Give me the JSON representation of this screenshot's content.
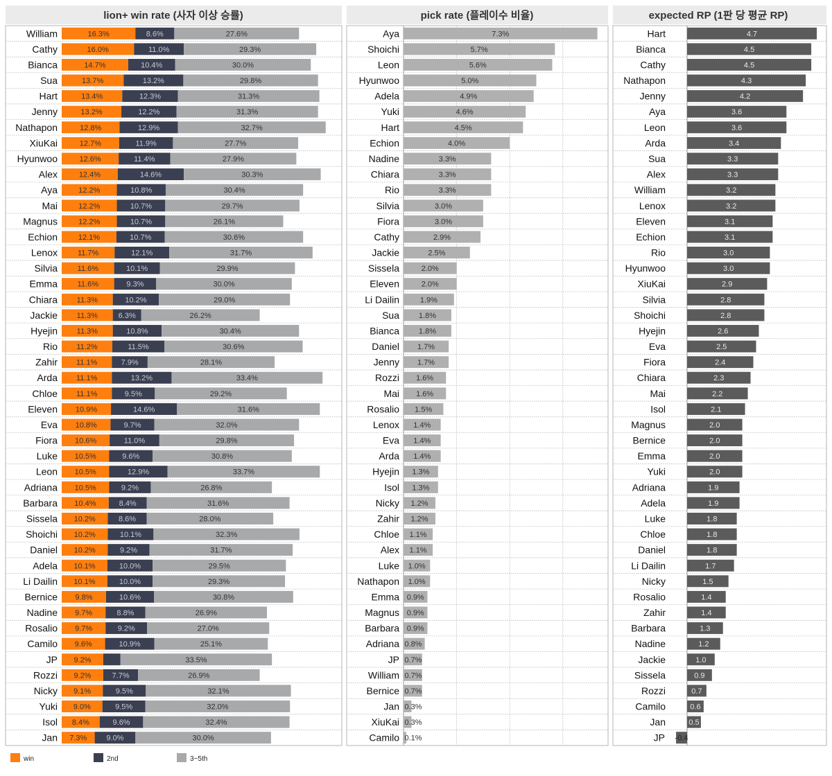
{
  "colors": {
    "win": "#ff7f0e",
    "second": "#3a3f51",
    "third_fifth": "#a7a9ab",
    "pick_bar": "#b0b0b0",
    "rp_bar": "#5b5b5b",
    "header_bg": "#ebebeb",
    "grid": "#b9b9b9"
  },
  "legend": {
    "win": "win",
    "second": "2nd",
    "third_fifth": "3~5th"
  },
  "chart_data": [
    {
      "type": "bar",
      "stacked": true,
      "orientation": "horizontal",
      "title": "lion+ win rate (사자 이상 승률)",
      "categories": [
        "William",
        "Cathy",
        "Bianca",
        "Sua",
        "Hart",
        "Jenny",
        "Nathapon",
        "XiuKai",
        "Hyunwoo",
        "Alex",
        "Aya",
        "Mai",
        "Magnus",
        "Echion",
        "Lenox",
        "Silvia",
        "Emma",
        "Chiara",
        "Jackie",
        "Hyejin",
        "Rio",
        "Zahir",
        "Arda",
        "Chloe",
        "Eleven",
        "Eva",
        "Fiora",
        "Luke",
        "Leon",
        "Adriana",
        "Barbara",
        "Sissela",
        "Shoichi",
        "Daniel",
        "Adela",
        "Li Dailin",
        "Bernice",
        "Nadine",
        "Rosalio",
        "Camilo",
        "JP",
        "Rozzi",
        "Nicky",
        "Yuki",
        "Isol",
        "Jan"
      ],
      "series": [
        {
          "name": "win",
          "values": [
            16.3,
            16.0,
            14.7,
            13.7,
            13.4,
            13.2,
            12.8,
            12.7,
            12.6,
            12.4,
            12.2,
            12.2,
            12.2,
            12.1,
            11.7,
            11.6,
            11.6,
            11.3,
            11.3,
            11.3,
            11.2,
            11.1,
            11.1,
            11.1,
            10.9,
            10.8,
            10.6,
            10.5,
            10.5,
            10.5,
            10.4,
            10.2,
            10.2,
            10.2,
            10.1,
            10.1,
            9.8,
            9.7,
            9.7,
            9.6,
            9.2,
            9.2,
            9.1,
            9.0,
            8.4,
            7.3
          ]
        },
        {
          "name": "2nd",
          "values": [
            8.6,
            11.0,
            10.4,
            13.2,
            12.3,
            12.2,
            12.9,
            11.9,
            11.4,
            14.6,
            10.8,
            10.7,
            10.7,
            10.7,
            12.1,
            10.1,
            9.3,
            10.2,
            6.3,
            10.8,
            11.5,
            7.9,
            13.2,
            9.5,
            14.6,
            9.7,
            11.0,
            9.6,
            12.9,
            9.2,
            8.4,
            8.6,
            10.1,
            9.2,
            10.0,
            10.0,
            10.6,
            8.8,
            9.2,
            10.9,
            3.8,
            7.7,
            9.5,
            9.5,
            9.6,
            9.0
          ]
        },
        {
          "name": "3~5th",
          "values": [
            27.6,
            29.3,
            30.0,
            29.8,
            31.3,
            31.3,
            32.7,
            27.7,
            27.9,
            30.3,
            30.4,
            29.7,
            26.1,
            30.6,
            31.7,
            29.9,
            30.0,
            29.0,
            26.2,
            30.4,
            30.6,
            28.1,
            33.4,
            29.2,
            31.6,
            32.0,
            29.8,
            30.8,
            33.7,
            26.8,
            31.6,
            28.0,
            32.3,
            31.7,
            29.5,
            29.3,
            30.8,
            26.9,
            27.0,
            25.1,
            33.5,
            26.9,
            32.1,
            32.0,
            32.4,
            30.0
          ]
        }
      ],
      "second_labels": [
        "8.6%",
        "11.0%",
        "10.4%",
        "13.2%",
        "12.3%",
        "12.2%",
        "12.9%",
        "11.9%",
        "11.4%",
        "14.6%",
        "10.8%",
        "10.7%",
        "10.7%",
        "10.7%",
        "12.1%",
        "10.1%",
        "9.3%",
        "10.2%",
        "6.3%",
        "10.8%",
        "11.5%",
        "7.9%",
        "13.2%",
        "9.5%",
        "14.6%",
        "9.7%",
        "11.0%",
        "9.6%",
        "12.9%",
        "9.2%",
        "8.4%",
        "8.6%",
        "10.1%",
        "9.2%",
        "10.0%",
        "10.0%",
        "10.6%",
        "8.8%",
        "9.2%",
        "10.9%",
        "",
        "7.7%",
        "9.5%",
        "9.5%",
        "9.6%",
        "9.0%"
      ],
      "xlim": [
        0,
        65
      ]
    },
    {
      "type": "bar",
      "orientation": "horizontal",
      "title": "pick rate (플레이수 비율)",
      "categories": [
        "Aya",
        "Shoichi",
        "Leon",
        "Hyunwoo",
        "Adela",
        "Yuki",
        "Hart",
        "Echion",
        "Nadine",
        "Chiara",
        "Rio",
        "Silvia",
        "Fiora",
        "Cathy",
        "Jackie",
        "Sissela",
        "Eleven",
        "Li Dailin",
        "Sua",
        "Bianca",
        "Daniel",
        "Jenny",
        "Rozzi",
        "Mai",
        "Rosalio",
        "Lenox",
        "Eva",
        "Arda",
        "Hyejin",
        "Isol",
        "Nicky",
        "Zahir",
        "Chloe",
        "Alex",
        "Luke",
        "Nathapon",
        "Emma",
        "Magnus",
        "Barbara",
        "Adriana",
        "JP",
        "William",
        "Bernice",
        "Jan",
        "XiuKai",
        "Camilo"
      ],
      "values": [
        7.3,
        5.7,
        5.6,
        5.0,
        4.9,
        4.6,
        4.5,
        4.0,
        3.3,
        3.3,
        3.3,
        3.0,
        3.0,
        2.9,
        2.5,
        2.0,
        2.0,
        1.9,
        1.8,
        1.8,
        1.7,
        1.7,
        1.6,
        1.6,
        1.5,
        1.4,
        1.4,
        1.4,
        1.3,
        1.3,
        1.2,
        1.2,
        1.1,
        1.1,
        1.0,
        1.0,
        0.9,
        0.9,
        0.9,
        0.8,
        0.7,
        0.7,
        0.7,
        0.3,
        0.3,
        0.1
      ],
      "xlim": [
        0,
        8
      ],
      "grid": true
    },
    {
      "type": "bar",
      "orientation": "horizontal",
      "title": "expected RP (1판 당 평균 RP)",
      "categories": [
        "Hart",
        "Bianca",
        "Cathy",
        "Nathapon",
        "Jenny",
        "Aya",
        "Leon",
        "Arda",
        "Sua",
        "Alex",
        "William",
        "Lenox",
        "Eleven",
        "Echion",
        "Rio",
        "Hyunwoo",
        "XiuKai",
        "Silvia",
        "Shoichi",
        "Hyejin",
        "Eva",
        "Fiora",
        "Chiara",
        "Mai",
        "Isol",
        "Magnus",
        "Bernice",
        "Emma",
        "Yuki",
        "Adriana",
        "Adela",
        "Luke",
        "Chloe",
        "Daniel",
        "Li Dailin",
        "Nicky",
        "Rosalio",
        "Zahir",
        "Barbara",
        "Nadine",
        "Jackie",
        "Sissela",
        "Rozzi",
        "Camilo",
        "Jan",
        "JP"
      ],
      "values": [
        4.7,
        4.5,
        4.5,
        4.3,
        4.2,
        3.6,
        3.6,
        3.4,
        3.3,
        3.3,
        3.2,
        3.2,
        3.1,
        3.1,
        3.0,
        3.0,
        2.9,
        2.8,
        2.8,
        2.6,
        2.5,
        2.4,
        2.3,
        2.2,
        2.1,
        2.0,
        2.0,
        2.0,
        2.0,
        1.9,
        1.9,
        1.8,
        1.8,
        1.8,
        1.7,
        1.5,
        1.4,
        1.4,
        1.3,
        1.2,
        1.0,
        0.9,
        0.7,
        0.6,
        0.5,
        -0.4
      ],
      "xlim": [
        -0.45,
        5.0
      ]
    }
  ]
}
